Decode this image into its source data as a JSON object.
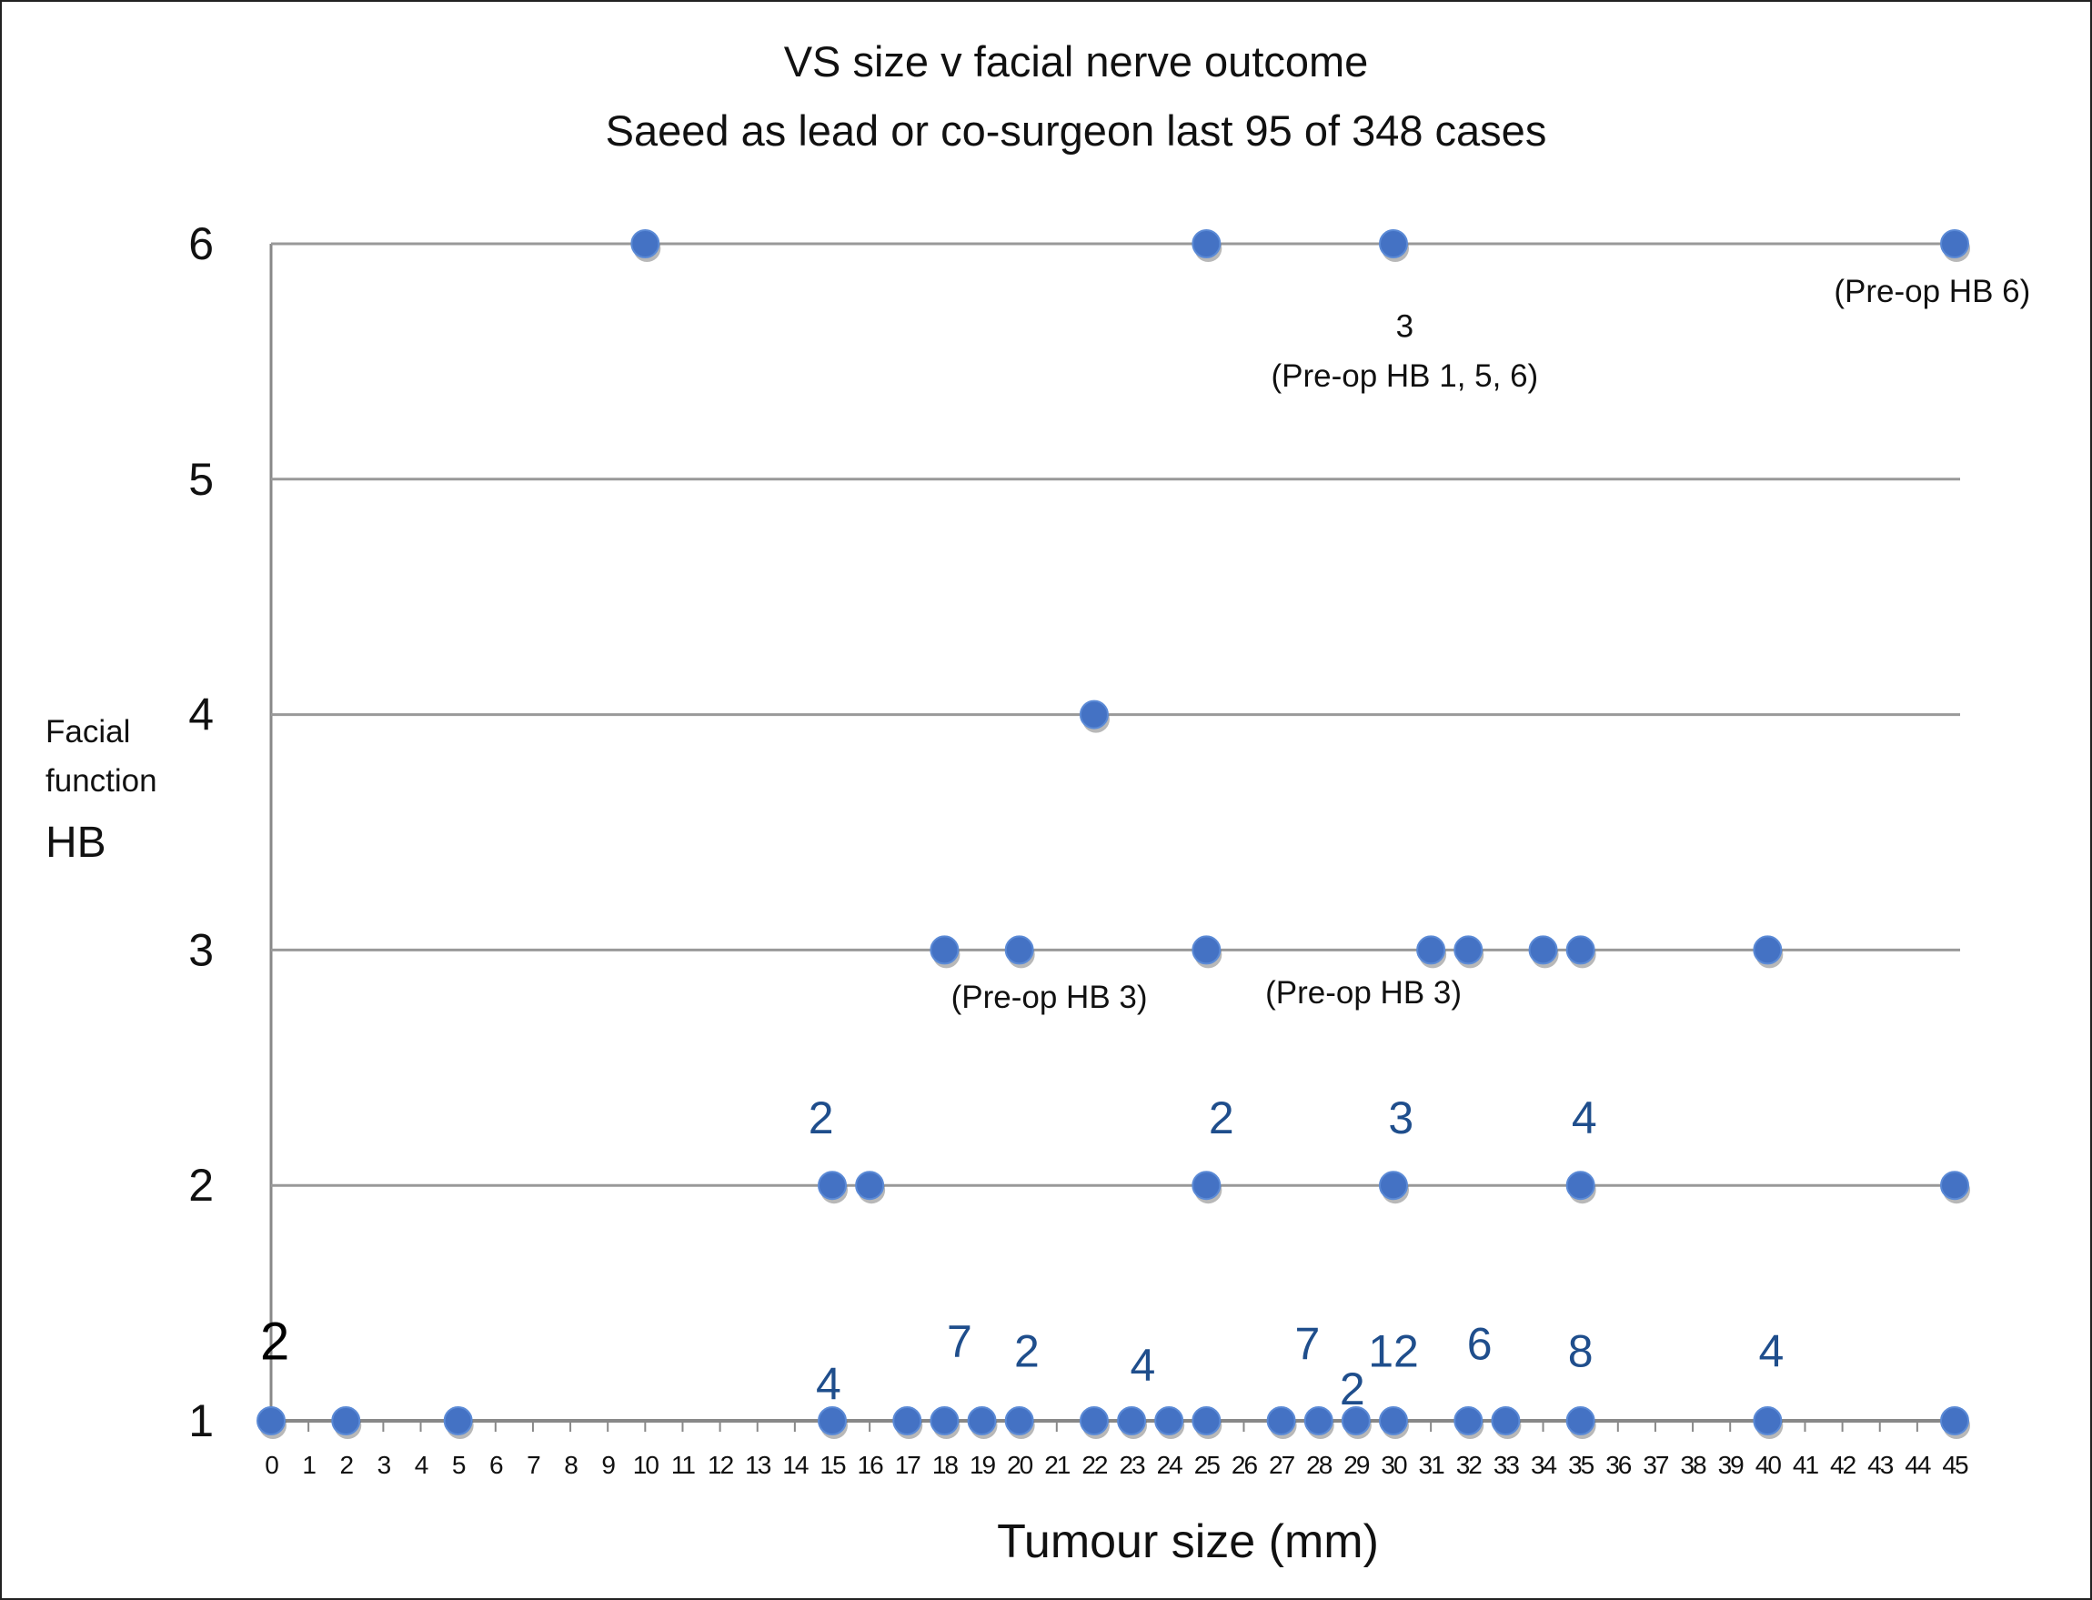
{
  "chart_data": {
    "type": "scatter",
    "title": "VS size v facial nerve outcome",
    "subtitle": "Saeed as lead or co-surgeon last 95 of 348 cases",
    "xlabel": "Tumour size (mm)",
    "ylabel_lines": [
      "Facial",
      "function",
      "HB"
    ],
    "xlim": [
      0,
      45
    ],
    "ylim": [
      1,
      6
    ],
    "x_ticks": [
      0,
      1,
      2,
      3,
      4,
      5,
      6,
      7,
      8,
      9,
      10,
      11,
      12,
      13,
      14,
      15,
      16,
      17,
      18,
      19,
      20,
      21,
      22,
      23,
      24,
      25,
      26,
      27,
      28,
      29,
      30,
      31,
      32,
      33,
      34,
      35,
      36,
      37,
      38,
      39,
      40,
      41,
      42,
      43,
      44,
      45
    ],
    "y_ticks": [
      1,
      2,
      3,
      4,
      5,
      6
    ],
    "grid": "horizontal",
    "marker_color": "#4472C4",
    "points": [
      {
        "x": 0,
        "y": 1
      },
      {
        "x": 2,
        "y": 1
      },
      {
        "x": 5,
        "y": 1
      },
      {
        "x": 15,
        "y": 1
      },
      {
        "x": 17,
        "y": 1
      },
      {
        "x": 18,
        "y": 1
      },
      {
        "x": 19,
        "y": 1
      },
      {
        "x": 20,
        "y": 1
      },
      {
        "x": 22,
        "y": 1
      },
      {
        "x": 23,
        "y": 1
      },
      {
        "x": 24,
        "y": 1
      },
      {
        "x": 25,
        "y": 1
      },
      {
        "x": 27,
        "y": 1
      },
      {
        "x": 28,
        "y": 1
      },
      {
        "x": 29,
        "y": 1
      },
      {
        "x": 30,
        "y": 1
      },
      {
        "x": 32,
        "y": 1
      },
      {
        "x": 33,
        "y": 1
      },
      {
        "x": 35,
        "y": 1
      },
      {
        "x": 40,
        "y": 1
      },
      {
        "x": 45,
        "y": 1
      },
      {
        "x": 15,
        "y": 2
      },
      {
        "x": 16,
        "y": 2
      },
      {
        "x": 25,
        "y": 2
      },
      {
        "x": 30,
        "y": 2
      },
      {
        "x": 35,
        "y": 2
      },
      {
        "x": 45,
        "y": 2
      },
      {
        "x": 18,
        "y": 3
      },
      {
        "x": 20,
        "y": 3
      },
      {
        "x": 25,
        "y": 3
      },
      {
        "x": 31,
        "y": 3
      },
      {
        "x": 32,
        "y": 3
      },
      {
        "x": 34,
        "y": 3
      },
      {
        "x": 35,
        "y": 3
      },
      {
        "x": 40,
        "y": 3
      },
      {
        "x": 22,
        "y": 4
      },
      {
        "x": 10,
        "y": 6
      },
      {
        "x": 25,
        "y": 6
      },
      {
        "x": 30,
        "y": 6
      },
      {
        "x": 45,
        "y": 6
      }
    ],
    "count_labels": [
      {
        "text": "2",
        "x": 0.1,
        "y": 1.33,
        "color": "#000000"
      },
      {
        "text": "4",
        "x": 14.9,
        "y": 1.16,
        "color": "#1F4E8C"
      },
      {
        "text": "7",
        "x": 18.4,
        "y": 1.34,
        "color": "#1F4E8C"
      },
      {
        "text": "2",
        "x": 20.2,
        "y": 1.3,
        "color": "#1F4E8C"
      },
      {
        "text": "4",
        "x": 23.3,
        "y": 1.24,
        "color": "#1F4E8C"
      },
      {
        "text": "7",
        "x": 27.7,
        "y": 1.33,
        "color": "#1F4E8C"
      },
      {
        "text": "2",
        "x": 28.9,
        "y": 1.14,
        "color": "#1F4E8C"
      },
      {
        "text": "12",
        "x": 30,
        "y": 1.3,
        "color": "#1F4E8C"
      },
      {
        "text": "6",
        "x": 32.3,
        "y": 1.33,
        "color": "#1F4E8C"
      },
      {
        "text": "8",
        "x": 35,
        "y": 1.3,
        "color": "#1F4E8C"
      },
      {
        "text": "4",
        "x": 40.1,
        "y": 1.3,
        "color": "#1F4E8C"
      },
      {
        "text": "2",
        "x": 14.7,
        "y": 2.29,
        "color": "#1F4E8C"
      },
      {
        "text": "2",
        "x": 25.4,
        "y": 2.29,
        "color": "#1F4E8C"
      },
      {
        "text": "3",
        "x": 30.2,
        "y": 2.29,
        "color": "#1F4E8C"
      },
      {
        "text": "4",
        "x": 35.1,
        "y": 2.29,
        "color": "#1F4E8C"
      }
    ],
    "annotations": [
      {
        "text": "(Pre-op HB 3)",
        "x": 20.8,
        "y": 2.8
      },
      {
        "text": "(Pre-op HB 3)",
        "x": 29.2,
        "y": 2.82
      },
      {
        "text": "3",
        "x": 30.3,
        "y": 5.65
      },
      {
        "text": "(Pre-op HB 1, 5, 6)",
        "x": 30.3,
        "y": 5.44
      },
      {
        "text": "(Pre-op HB 6)",
        "x": 44.4,
        "y": 5.8
      }
    ]
  }
}
